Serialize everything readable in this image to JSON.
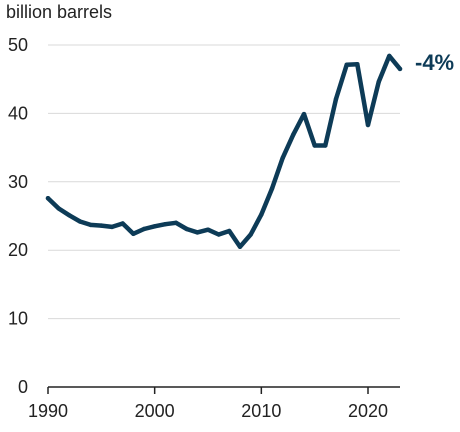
{
  "chart_data": {
    "type": "line",
    "ylabel": "billion barrels",
    "ylim": [
      0,
      50
    ],
    "xlim": [
      1990,
      2023
    ],
    "grid": true,
    "y_ticks": [
      0,
      10,
      20,
      30,
      40,
      50
    ],
    "x_ticks": [
      1990,
      2000,
      2010,
      2020
    ],
    "x": [
      1990,
      1991,
      1992,
      1993,
      1994,
      1995,
      1996,
      1997,
      1998,
      1999,
      2000,
      2001,
      2002,
      2003,
      2004,
      2005,
      2006,
      2007,
      2008,
      2009,
      2010,
      2011,
      2012,
      2013,
      2014,
      2015,
      2016,
      2017,
      2018,
      2019,
      2020,
      2021,
      2022,
      2023
    ],
    "series": [
      {
        "values": [
          27.6,
          26.1,
          25.1,
          24.2,
          23.7,
          23.6,
          23.4,
          23.9,
          22.4,
          23.1,
          23.5,
          23.8,
          24.0,
          23.1,
          22.6,
          23.0,
          22.3,
          22.8,
          20.5,
          22.3,
          25.2,
          29.0,
          33.5,
          36.9,
          39.9,
          35.3,
          35.3,
          42.1,
          47.1,
          47.2,
          38.3,
          44.6,
          48.4,
          46.5
        ],
        "end_label": "-4%",
        "color": "#0d3b57"
      }
    ]
  }
}
